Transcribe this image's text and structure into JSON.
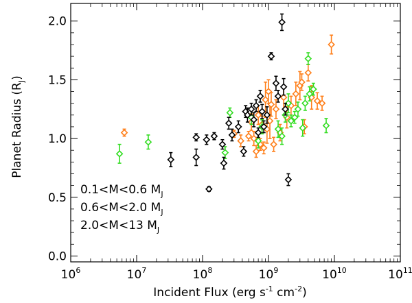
{
  "chart_data": {
    "type": "scatter",
    "xlabel_main": "Incident Flux (erg s",
    "xlabel_sup1": "-1",
    "xlabel_mid": " cm",
    "xlabel_sup2": "-2",
    "xlabel_end": ")",
    "ylabel_main": "Planet Radius (R",
    "ylabel_sub": "J",
    "ylabel_end": ")",
    "x_scale": "log",
    "xlim": [
      1000000,
      100000000000
    ],
    "ylim": [
      -0.05,
      2.15
    ],
    "x_ticks": [
      {
        "value": 1000000,
        "base": "10",
        "exp": "6"
      },
      {
        "value": 10000000,
        "base": "10",
        "exp": "7"
      },
      {
        "value": 100000000,
        "base": "10",
        "exp": "8"
      },
      {
        "value": 1000000000,
        "base": "10",
        "exp": "9"
      },
      {
        "value": 10000000000,
        "base": "10",
        "exp": "10"
      },
      {
        "value": 100000000000,
        "base": "10",
        "exp": "11"
      }
    ],
    "y_ticks": [
      {
        "value": 0.0,
        "label": "0.0"
      },
      {
        "value": 0.5,
        "label": "0.5"
      },
      {
        "value": 1.0,
        "label": "1.0"
      },
      {
        "value": 1.5,
        "label": "1.5"
      },
      {
        "value": 2.0,
        "label": "2.0"
      }
    ],
    "legend_position": "lower-left",
    "series": [
      {
        "name": "0.1<M<0.6 M",
        "name_sub": "J",
        "color": "#000000",
        "points": [
          [
            33000000.0,
            0.82,
            0.06
          ],
          [
            80000000.0,
            1.01,
            0.03
          ],
          [
            80000000.0,
            0.84,
            0.07
          ],
          [
            115000000.0,
            0.99,
            0.04
          ],
          [
            125000000.0,
            0.57,
            0.02
          ],
          [
            150000000.0,
            1.02,
            0.03
          ],
          [
            200000000.0,
            0.95,
            0.04
          ],
          [
            210000000.0,
            0.79,
            0.05
          ],
          [
            250000000.0,
            1.13,
            0.05
          ],
          [
            280000000.0,
            1.03,
            0.05
          ],
          [
            350000000.0,
            1.1,
            0.05
          ],
          [
            420000000.0,
            0.89,
            0.04
          ],
          [
            450000000.0,
            1.23,
            0.05
          ],
          [
            480000000.0,
            1.2,
            0.06
          ],
          [
            550000000.0,
            1.25,
            0.05
          ],
          [
            600000000.0,
            1.16,
            0.06
          ],
          [
            650000000.0,
            1.28,
            0.05
          ],
          [
            700000000.0,
            1.05,
            0.04
          ],
          [
            750000000.0,
            1.36,
            0.05
          ],
          [
            800000000.0,
            1.23,
            0.06
          ],
          [
            850000000.0,
            1.1,
            0.05
          ],
          [
            950000000.0,
            1.2,
            0.07
          ],
          [
            1100000000.0,
            1.7,
            0.03
          ],
          [
            1300000000.0,
            1.47,
            0.06
          ],
          [
            1400000000.0,
            1.36,
            0.05
          ],
          [
            1600000000.0,
            1.99,
            0.07
          ],
          [
            1700000000.0,
            1.44,
            0.07
          ],
          [
            1800000000.0,
            1.25,
            0.05
          ],
          [
            2000000000.0,
            0.65,
            0.05
          ]
        ]
      },
      {
        "name": "0.6<M<2.0 M",
        "name_sub": "J",
        "color": "#ff7f1a",
        "points": [
          [
            6500000.0,
            1.05,
            0.03
          ],
          [
            300000000.0,
            1.04,
            0.03
          ],
          [
            380000000.0,
            0.98,
            0.05
          ],
          [
            500000000.0,
            1.02,
            0.04
          ],
          [
            550000000.0,
            1.14,
            0.07
          ],
          [
            600000000.0,
            1.0,
            0.06
          ],
          [
            650000000.0,
            0.89,
            0.05
          ],
          [
            700000000.0,
            1.2,
            0.08
          ],
          [
            750000000.0,
            0.95,
            0.05
          ],
          [
            800000000.0,
            1.12,
            0.07
          ],
          [
            850000000.0,
            0.92,
            0.05
          ],
          [
            900000000.0,
            1.33,
            0.15
          ],
          [
            950000000.0,
            1.08,
            0.12
          ],
          [
            1000000000.0,
            1.4,
            0.1
          ],
          [
            1050000000.0,
            1.15,
            0.15
          ],
          [
            1100000000.0,
            1.29,
            0.1
          ],
          [
            1200000000.0,
            0.95,
            0.06
          ],
          [
            1300000000.0,
            1.25,
            0.08
          ],
          [
            1500000000.0,
            1.05,
            0.07
          ],
          [
            1700000000.0,
            1.35,
            0.1
          ],
          [
            1900000000.0,
            1.18,
            0.09
          ],
          [
            2200000000.0,
            1.28,
            0.08
          ],
          [
            2600000000.0,
            1.38,
            0.1
          ],
          [
            3000000000.0,
            1.45,
            0.12
          ],
          [
            3200000000.0,
            1.48,
            0.07
          ],
          [
            3500000000.0,
            1.1,
            0.06
          ],
          [
            4000000000.0,
            1.56,
            0.07
          ],
          [
            4500000000.0,
            1.35,
            0.1
          ],
          [
            5500000000.0,
            1.32,
            0.07
          ],
          [
            6500000000.0,
            1.3,
            0.06
          ],
          [
            9000000000.0,
            1.8,
            0.08
          ]
        ]
      },
      {
        "name": "2.0<M<13 M",
        "name_sub": "J",
        "color": "#33dd22",
        "points": [
          [
            5500000.0,
            0.87,
            0.08
          ],
          [
            15000000.0,
            0.97,
            0.06
          ],
          [
            220000000.0,
            0.88,
            0.05
          ],
          [
            260000000.0,
            1.22,
            0.04
          ],
          [
            550000000.0,
            1.18,
            0.06
          ],
          [
            700000000.0,
            0.98,
            0.06
          ],
          [
            800000000.0,
            1.1,
            0.06
          ],
          [
            1400000000.0,
            1.08,
            0.07
          ],
          [
            1600000000.0,
            1.02,
            0.07
          ],
          [
            1800000000.0,
            1.2,
            0.06
          ],
          [
            2000000000.0,
            1.3,
            0.08
          ],
          [
            2200000000.0,
            1.15,
            0.05
          ],
          [
            2500000000.0,
            1.18,
            0.05
          ],
          [
            2800000000.0,
            1.25,
            0.06
          ],
          [
            3300000000.0,
            1.09,
            0.07
          ],
          [
            3600000000.0,
            1.3,
            0.06
          ],
          [
            4000000000.0,
            1.68,
            0.05
          ],
          [
            4200000000.0,
            1.38,
            0.06
          ],
          [
            4800000000.0,
            1.42,
            0.05
          ],
          [
            7500000000.0,
            1.11,
            0.06
          ]
        ]
      }
    ]
  }
}
